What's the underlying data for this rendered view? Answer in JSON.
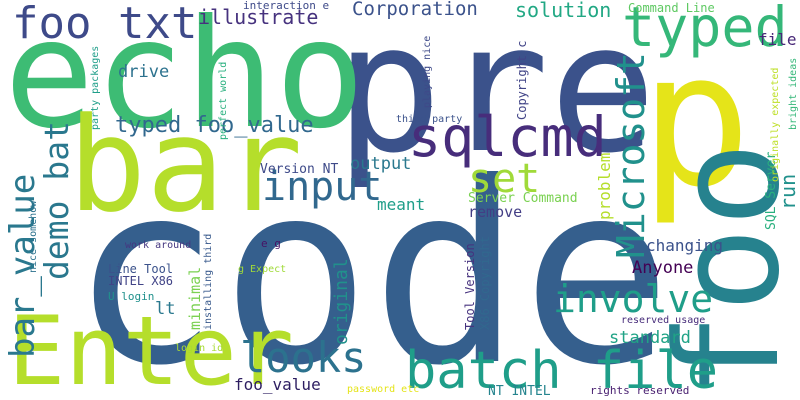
{
  "words": [
    {
      "text": "code",
      "color": "#355f8d"
    },
    {
      "text": "p",
      "color": "#e5e419"
    },
    {
      "text": "pre",
      "color": "#3b528b"
    },
    {
      "text": "echo",
      "color": "#3dbc74"
    },
    {
      "text": "bar",
      "color": "#b5de2b"
    },
    {
      "text": "foo",
      "color": "#26828e"
    },
    {
      "text": "Enter",
      "color": "#b5de2b"
    },
    {
      "text": "batch file",
      "color": "#1f9e89"
    },
    {
      "text": "sqlcmd",
      "color": "#472d7b"
    },
    {
      "text": "typed",
      "color": "#35b779"
    },
    {
      "text": "foo txt",
      "color": "#3e4a89"
    },
    {
      "text": "Microsoft",
      "color": "#21918c"
    },
    {
      "text": "involve",
      "color": "#1f9e89"
    },
    {
      "text": "input",
      "color": "#31688e"
    },
    {
      "text": "looks",
      "color": "#2c728e"
    },
    {
      "text": "set",
      "color": "#a0da39"
    },
    {
      "text": "bar_value",
      "color": "#2a788e"
    },
    {
      "text": "demo bat",
      "color": "#2a788e"
    },
    {
      "text": "typed foo_value",
      "color": "#31688e"
    },
    {
      "text": "illustrate",
      "color": "#46327e"
    },
    {
      "text": "Corporation",
      "color": "#3b528b"
    },
    {
      "text": "solution",
      "color": "#22a884"
    },
    {
      "text": "drive",
      "color": "#2c728e"
    },
    {
      "text": "run",
      "color": "#21918c"
    },
    {
      "text": "file",
      "color": "#482878"
    },
    {
      "text": "output",
      "color": "#2a788e"
    },
    {
      "text": "Anyone",
      "color": "#440154"
    },
    {
      "text": "changing",
      "color": "#3b528b"
    },
    {
      "text": "standard",
      "color": "#20a386"
    },
    {
      "text": "remove",
      "color": "#433e85"
    },
    {
      "text": "meant",
      "color": "#1f9e89"
    },
    {
      "text": "original",
      "color": "#21918c"
    },
    {
      "text": "problem",
      "color": "#b5de2b"
    },
    {
      "text": "lt",
      "color": "#2a788e"
    },
    {
      "text": "minimal",
      "color": "#7ad151"
    },
    {
      "text": "foo_value",
      "color": "#2d1e61"
    },
    {
      "text": "Command Line",
      "color": "#5ec962"
    },
    {
      "text": "SQL Server",
      "color": "#2ab07f"
    },
    {
      "text": "Server Command",
      "color": "#7ad151"
    },
    {
      "text": "Version NT",
      "color": "#3e4a89"
    },
    {
      "text": "Copyright c",
      "color": "#414487"
    },
    {
      "text": "X86 Copyright",
      "color": "#31688e"
    },
    {
      "text": "Tool Version",
      "color": "#46327e"
    },
    {
      "text": "NT INTEL",
      "color": "#25848e"
    },
    {
      "text": "Line Tool",
      "color": "#3b528b"
    },
    {
      "text": "INTEL X86",
      "color": "#414487"
    },
    {
      "text": "U login",
      "color": "#21918c"
    },
    {
      "text": "interaction e",
      "color": "#3e4a89"
    },
    {
      "text": "e g",
      "color": "#471365"
    },
    {
      "text": "work around",
      "color": "#453781"
    },
    {
      "text": "g Expect",
      "color": "#a0da39"
    },
    {
      "text": "login id",
      "color": "#a8db34"
    },
    {
      "text": "password etc",
      "color": "#e5e419"
    },
    {
      "text": "rights reserved",
      "color": "#481f70"
    },
    {
      "text": "reserved usage",
      "color": "#472c7a"
    },
    {
      "text": "originally expected",
      "color": "#bddf26"
    },
    {
      "text": "bright ideas",
      "color": "#35b779"
    },
    {
      "text": "party packages",
      "color": "#1f9e89"
    },
    {
      "text": "perfect world",
      "color": "#2ab07f"
    },
    {
      "text": "playing nice",
      "color": "#3e4a89"
    },
    {
      "text": "nice somehow",
      "color": "#2c728e"
    },
    {
      "text": "installing third",
      "color": "#38598c"
    },
    {
      "text": "third party",
      "color": "#3b528b"
    }
  ]
}
